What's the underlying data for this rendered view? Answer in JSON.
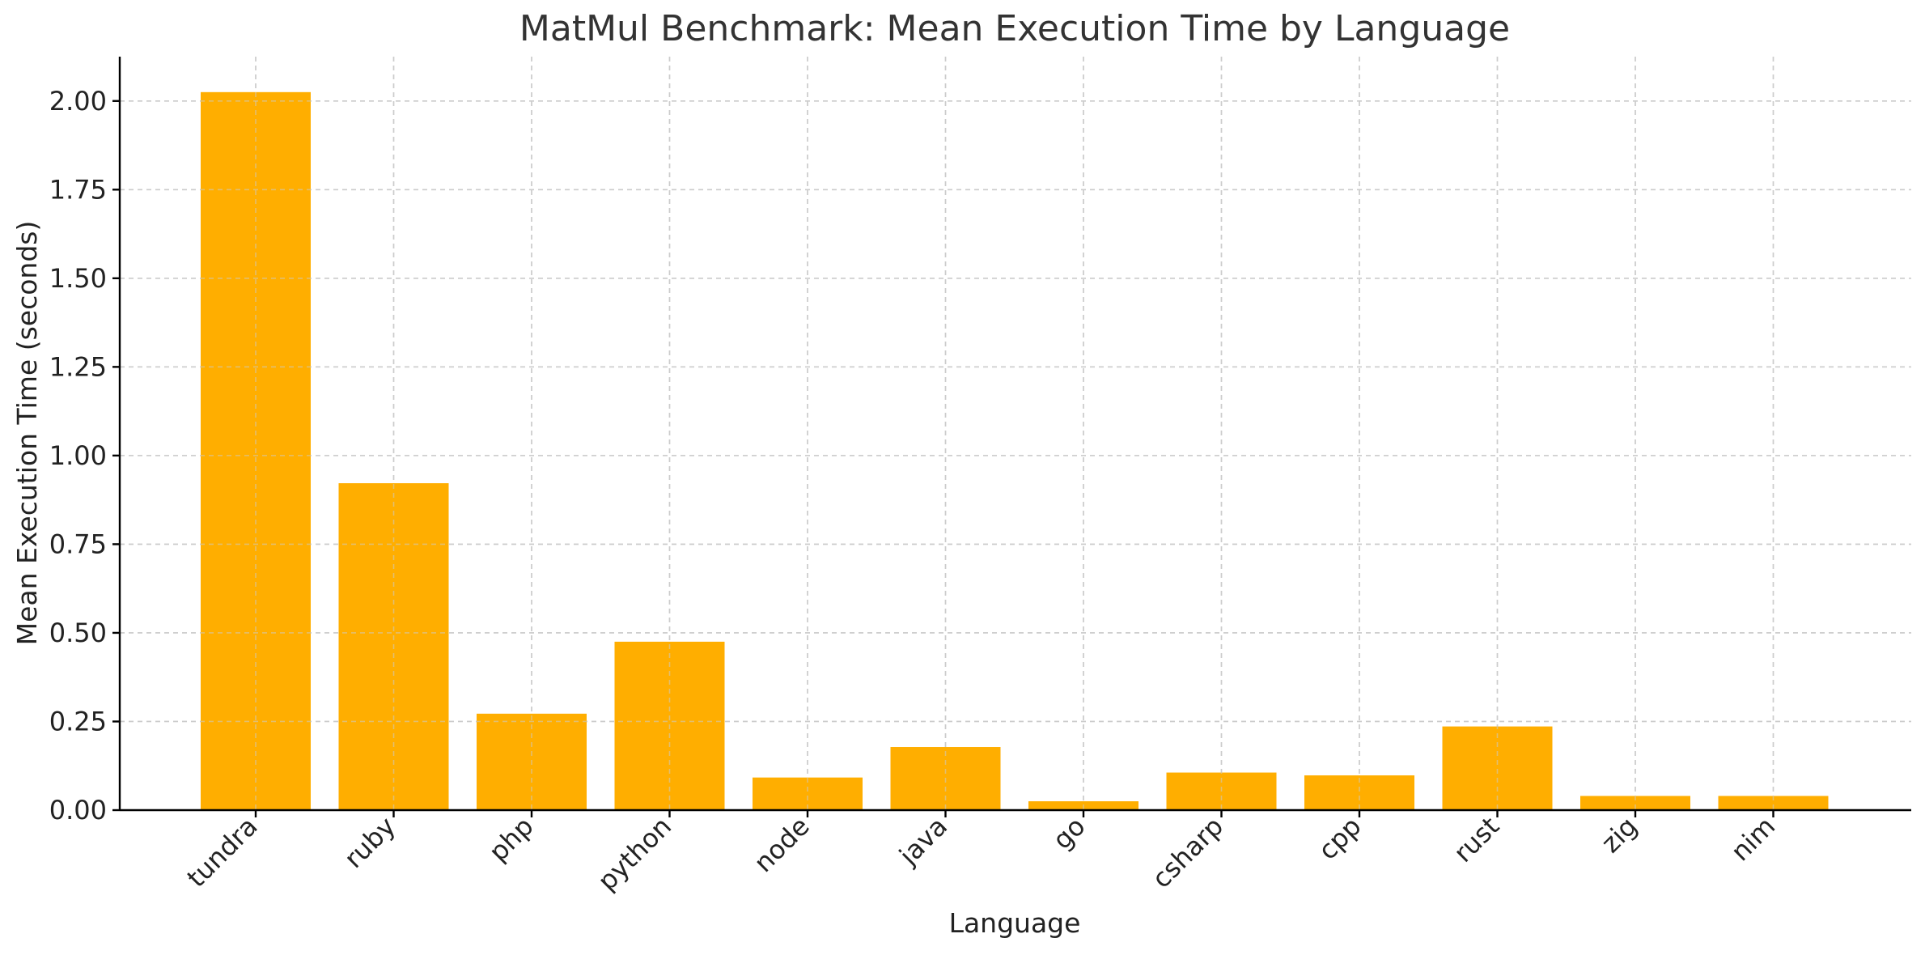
{
  "chart_data": {
    "type": "bar",
    "title": "MatMul Benchmark: Mean Execution Time by Language",
    "xlabel": "Language",
    "ylabel": "Mean Execution Time (seconds)",
    "categories": [
      "tundra",
      "ruby",
      "php",
      "python",
      "node",
      "java",
      "go",
      "csharp",
      "cpp",
      "rust",
      "zig",
      "nim"
    ],
    "values": [
      2.025,
      0.922,
      0.272,
      0.475,
      0.092,
      0.178,
      0.025,
      0.106,
      0.098,
      0.236,
      0.04,
      0.04
    ],
    "ylim": [
      0,
      2.125
    ],
    "yticks": [
      "0.00",
      "0.25",
      "0.50",
      "0.75",
      "1.00",
      "1.25",
      "1.50",
      "1.75",
      "2.00"
    ],
    "grid": true,
    "bar_color": "#FFAE00"
  }
}
